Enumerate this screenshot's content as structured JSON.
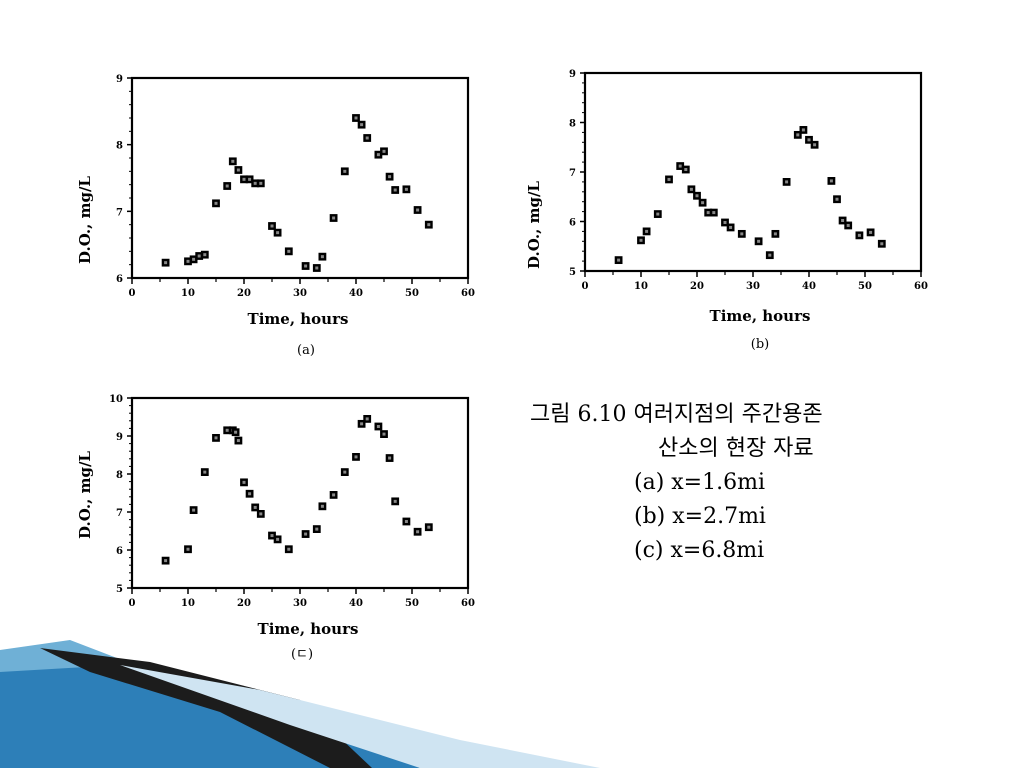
{
  "caption": {
    "title_line1": "그림 6.10 여러지점의 주간용존",
    "title_line2": "산소의 현장 자료",
    "items": [
      "(a) x=1.6mi",
      "(b) x=2.7mi",
      "(c) x=6.8mi"
    ]
  },
  "chart_data": [
    {
      "type": "scatter",
      "panel_label": "(a)",
      "xlabel": "Time, hours",
      "ylabel": "D.O., mg/L",
      "xlim": [
        0,
        60
      ],
      "ylim": [
        6,
        9
      ],
      "xticks": [
        "0",
        "10",
        "20",
        "30",
        "40",
        "50",
        "60"
      ],
      "yticks": [
        "6",
        "7",
        "8",
        "9"
      ],
      "x": [
        6,
        10,
        11,
        12,
        13,
        15,
        17,
        18,
        19,
        20,
        21,
        22,
        23,
        25,
        26,
        28,
        31,
        33,
        34,
        36,
        38,
        40,
        41,
        42,
        44,
        45,
        46,
        47,
        49,
        51,
        53
      ],
      "y": [
        6.23,
        6.25,
        6.28,
        6.33,
        6.35,
        7.12,
        7.38,
        7.75,
        7.62,
        7.48,
        7.48,
        7.42,
        7.42,
        6.78,
        6.68,
        6.4,
        6.18,
        6.15,
        6.32,
        6.9,
        7.6,
        8.4,
        8.3,
        8.1,
        7.85,
        7.9,
        7.52,
        7.32,
        7.33,
        7.02,
        6.8
      ]
    },
    {
      "type": "scatter",
      "panel_label": "(b)",
      "xlabel": "Time, hours",
      "ylabel": "D.O., mg/L",
      "xlim": [
        0,
        60
      ],
      "ylim": [
        5,
        9
      ],
      "xticks": [
        "0",
        "10",
        "20",
        "30",
        "40",
        "50",
        "60"
      ],
      "yticks": [
        "5",
        "6",
        "7",
        "8",
        "9"
      ],
      "x": [
        6,
        10,
        11,
        13,
        15,
        17,
        18,
        19,
        20,
        21,
        22,
        23,
        25,
        26,
        28,
        31,
        33,
        34,
        36,
        38,
        39,
        40,
        41,
        44,
        45,
        46,
        47,
        49,
        51,
        53
      ],
      "y": [
        5.22,
        5.62,
        5.8,
        6.15,
        6.85,
        7.12,
        7.05,
        6.65,
        6.52,
        6.38,
        6.18,
        6.18,
        5.98,
        5.88,
        5.75,
        5.6,
        5.32,
        5.75,
        6.8,
        7.75,
        7.85,
        7.65,
        7.55,
        6.82,
        6.45,
        6.02,
        5.92,
        5.72,
        5.78,
        5.55
      ]
    },
    {
      "type": "scatter",
      "panel_label": "(ㄷ)",
      "xlabel": "Time, hours",
      "ylabel": "D.O., mg/L",
      "xlim": [
        0,
        60
      ],
      "ylim": [
        5,
        10
      ],
      "xticks": [
        "0",
        "10",
        "20",
        "30",
        "40",
        "50",
        "60"
      ],
      "yticks": [
        "5",
        "6",
        "7",
        "8",
        "9",
        "10"
      ],
      "x": [
        6,
        10,
        11,
        13,
        15,
        17,
        18,
        18.5,
        19,
        20,
        21,
        22,
        23,
        25,
        26,
        28,
        31,
        33,
        34,
        36,
        38,
        40,
        41,
        42,
        44,
        45,
        46,
        47,
        49,
        51,
        53
      ],
      "y": [
        5.72,
        6.02,
        7.05,
        8.05,
        8.95,
        9.15,
        9.15,
        9.1,
        8.88,
        7.78,
        7.48,
        7.12,
        6.95,
        6.38,
        6.28,
        6.02,
        6.42,
        6.55,
        7.15,
        7.45,
        8.05,
        8.45,
        9.32,
        9.45,
        9.25,
        9.05,
        8.42,
        7.28,
        6.75,
        6.48,
        6.6
      ]
    }
  ]
}
